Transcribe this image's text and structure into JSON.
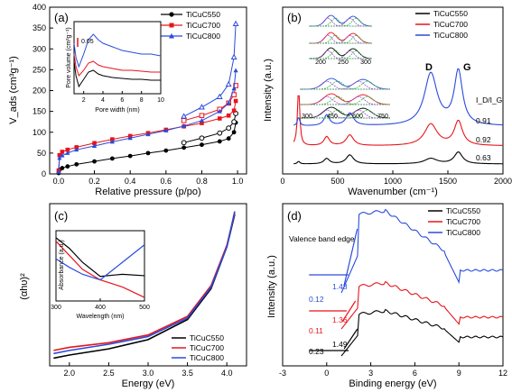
{
  "colors": {
    "black": "#000000",
    "red": "#e8141b",
    "blue": "#2a4bdc",
    "fit_green": "#39b54a",
    "fit_purple": "#a24bd3"
  },
  "chart_data": [
    {
      "panel": "(a)",
      "type": "line",
      "xlabel": "Relative pressure (p/po)",
      "ylabel": "V_ads (cm³g⁻¹)",
      "xlim": [
        -0.05,
        1.05
      ],
      "ylim": [
        0,
        400
      ],
      "xticks": [
        "0.0",
        "0.2",
        "0.4",
        "0.6",
        "0.8",
        "1.0"
      ],
      "yticks": [
        "0",
        "50",
        "100",
        "150",
        "200",
        "250",
        "300",
        "350",
        "400"
      ],
      "legend": [
        "TiCuC550",
        "TiCuC700",
        "TiCuC800"
      ],
      "series": [
        {
          "name": "TiCuC550",
          "color": "#000000",
          "marker": "circle",
          "x": [
            0.0,
            0.005,
            0.02,
            0.05,
            0.1,
            0.2,
            0.3,
            0.4,
            0.5,
            0.6,
            0.7,
            0.8,
            0.9,
            0.95,
            0.98,
            0.99
          ],
          "adsorption": [
            2,
            10,
            14,
            18,
            23,
            30,
            37,
            43,
            50,
            56,
            63,
            70,
            78,
            85,
            100,
            123
          ],
          "desorption_x": [
            0.99,
            0.98,
            0.95,
            0.9,
            0.8,
            0.7
          ],
          "desorption": [
            145,
            125,
            110,
            98,
            86,
            75
          ]
        },
        {
          "name": "TiCuC700",
          "color": "#e8141b",
          "marker": "square",
          "x": [
            0.0,
            0.005,
            0.02,
            0.05,
            0.1,
            0.2,
            0.3,
            0.4,
            0.5,
            0.6,
            0.7,
            0.8,
            0.9,
            0.95,
            0.98,
            0.99
          ],
          "adsorption": [
            8,
            45,
            53,
            58,
            64,
            74,
            83,
            91,
            98,
            106,
            114,
            122,
            133,
            140,
            152,
            175
          ],
          "desorption_x": [
            0.99,
            0.98,
            0.95,
            0.9,
            0.8,
            0.7
          ],
          "desorption": [
            212,
            190,
            170,
            155,
            140,
            128
          ]
        },
        {
          "name": "TiCuC800",
          "color": "#2a4bdc",
          "marker": "triangle",
          "x": [
            0.0,
            0.005,
            0.02,
            0.05,
            0.1,
            0.2,
            0.3,
            0.4,
            0.5,
            0.6,
            0.7,
            0.8,
            0.9,
            0.95,
            0.98,
            0.99
          ],
          "adsorption": [
            5,
            38,
            44,
            50,
            58,
            67,
            77,
            86,
            95,
            104,
            115,
            128,
            150,
            170,
            205,
            248
          ],
          "desorption_x": [
            0.99,
            0.98,
            0.95,
            0.9,
            0.8,
            0.7
          ],
          "desorption": [
            360,
            280,
            215,
            185,
            160,
            138
          ]
        }
      ],
      "inset": {
        "ylabel": "Pore volume (cm³g⁻¹)",
        "xlabel": "Pore width (nm)",
        "xlim": [
          1,
          10
        ],
        "xticks": [
          "2",
          "4",
          "6",
          "8",
          "10"
        ],
        "scale_label": "0.05",
        "series": [
          {
            "name": "TiCuC550",
            "x": [
              1.0,
              1.2,
              1.5,
              2,
              2.5,
              3,
              3.5,
              4,
              5,
              6,
              7,
              8,
              9,
              10
            ],
            "y": [
              0.18,
              0.1,
              0.04,
              0.08,
              0.12,
              0.13,
              0.11,
              0.1,
              0.09,
              0.085,
              0.08,
              0.08,
              0.075,
              0.075
            ]
          },
          {
            "name": "TiCuC700",
            "x": [
              1.0,
              1.2,
              1.5,
              2,
              2.5,
              3,
              3.5,
              4,
              5,
              6,
              7,
              8,
              9,
              10
            ],
            "y": [
              0.22,
              0.15,
              0.1,
              0.13,
              0.17,
              0.18,
              0.16,
              0.15,
              0.14,
              0.13,
              0.13,
              0.125,
              0.12,
              0.12
            ]
          },
          {
            "name": "TiCuC800",
            "x": [
              1.0,
              1.2,
              1.5,
              2,
              2.5,
              3,
              3.5,
              4,
              5,
              6,
              7,
              8,
              9,
              10
            ],
            "y": [
              0.28,
              0.2,
              0.15,
              0.22,
              0.3,
              0.33,
              0.3,
              0.28,
              0.26,
              0.24,
              0.23,
              0.22,
              0.22,
              0.21
            ]
          }
        ]
      }
    },
    {
      "panel": "(b)",
      "type": "line",
      "xlabel": "Wavenumber (cm⁻¹)",
      "ylabel": "Intensity (a.u.)",
      "xlim": [
        0,
        2000
      ],
      "xticks": [
        "0",
        "500",
        "1000",
        "1500",
        "2000"
      ],
      "legend": [
        "TiCuC550",
        "TiCuC700",
        "TiCuC800"
      ],
      "peaks": [
        "D",
        "G"
      ],
      "ratio_label": "I_D/I_G",
      "ratios": [
        {
          "name": "TiCuC800",
          "value": "0.91"
        },
        {
          "name": "TiCuC700",
          "value": "0.92"
        },
        {
          "name": "TiCuC550",
          "value": "0.63"
        }
      ],
      "inset_xticks_top": [
        "200",
        "250",
        "300"
      ],
      "inset_xticks_bottom": [
        "300",
        "450",
        "600",
        "750"
      ]
    },
    {
      "panel": "(c)",
      "type": "line",
      "xlabel": "Energy (eV)",
      "ylabel": "(αhυ)²",
      "xlim": [
        1.75,
        4.25
      ],
      "xticks": [
        "2.0",
        "2.5",
        "3.0",
        "3.5",
        "4.0"
      ],
      "legend": [
        "TiCuC550",
        "TiCuC700",
        "TiCuC800"
      ],
      "series": [
        {
          "name": "TiCuC550",
          "x": [
            1.8,
            2.0,
            2.5,
            3.0,
            3.5,
            3.8,
            4.0,
            4.1
          ],
          "y": [
            0.05,
            0.07,
            0.11,
            0.17,
            0.3,
            0.5,
            0.77,
            0.98
          ]
        },
        {
          "name": "TiCuC700",
          "x": [
            1.8,
            2.0,
            2.5,
            3.0,
            3.5,
            3.8,
            4.0,
            4.1
          ],
          "y": [
            0.1,
            0.12,
            0.15,
            0.2,
            0.32,
            0.52,
            0.78,
            0.99
          ]
        },
        {
          "name": "TiCuC800",
          "x": [
            1.8,
            2.0,
            2.5,
            3.0,
            3.5,
            3.8,
            4.0,
            4.1
          ],
          "y": [
            0.08,
            0.1,
            0.14,
            0.19,
            0.31,
            0.51,
            0.77,
            1.0
          ]
        }
      ],
      "inset": {
        "xlabel": "Wavelength (nm)",
        "ylabel": "Absorbance (a.u.)",
        "xlim": [
          300,
          500
        ],
        "xticks": [
          "300",
          "400",
          "500"
        ],
        "series": [
          {
            "name": "TiCuC550",
            "x": [
              300,
              330,
              360,
              400,
              450,
              500
            ],
            "y": [
              0.9,
              0.75,
              0.55,
              0.35,
              0.38,
              0.36
            ]
          },
          {
            "name": "TiCuC700",
            "x": [
              300,
              330,
              360,
              400,
              450,
              500
            ],
            "y": [
              0.85,
              0.65,
              0.45,
              0.3,
              0.2,
              0.05
            ]
          },
          {
            "name": "TiCuC800",
            "x": [
              300,
              330,
              360,
              400,
              450,
              500
            ],
            "y": [
              0.6,
              0.48,
              0.38,
              0.3,
              0.55,
              0.8
            ]
          }
        ]
      }
    },
    {
      "panel": "(d)",
      "type": "line",
      "xlabel": "Binding energy (eV)",
      "ylabel": "Intensity (a.u.)",
      "xlim": [
        -3,
        12
      ],
      "xticks": [
        "-3",
        "0",
        "3",
        "6",
        "9",
        "12"
      ],
      "legend": [
        "TiCuC550",
        "TiCuC700",
        "TiCuC800"
      ],
      "annotation": "Valence band edge",
      "labels": [
        {
          "name": "TiCuC800",
          "left": "0.12",
          "edge": "1.48"
        },
        {
          "name": "TiCuC700",
          "left": "0.11",
          "edge": "1.36"
        },
        {
          "name": "TiCuC550",
          "left": "0.23",
          "edge": "1.49"
        }
      ]
    }
  ]
}
